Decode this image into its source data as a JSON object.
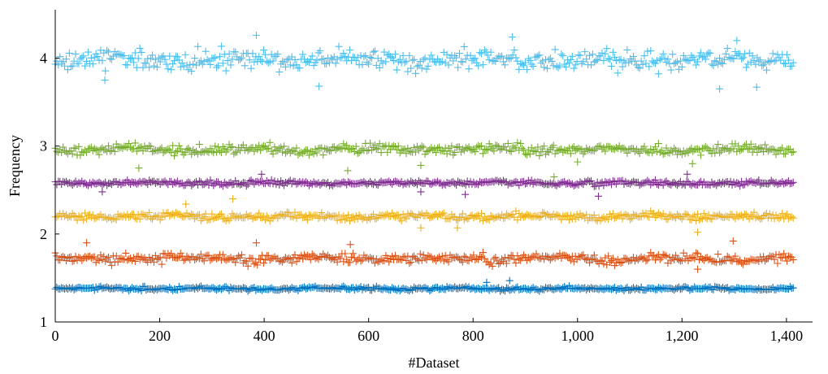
{
  "chart_data": {
    "type": "scatter",
    "title": "",
    "xlabel": "#Dataset",
    "ylabel": "Frequency",
    "xlim": [
      0,
      1450
    ],
    "ylim": [
      1,
      4.55
    ],
    "grid": false,
    "marker": "plus",
    "x_ticks": [
      0,
      200,
      400,
      600,
      800,
      1000,
      1200,
      1400
    ],
    "x_tick_labels": [
      "0",
      "200",
      "400",
      "600",
      "800",
      "1,000",
      "1,200",
      "1,400"
    ],
    "y_ticks": [
      1,
      2,
      3,
      4
    ],
    "y_tick_labels": [
      "1",
      "2",
      "3",
      "4"
    ],
    "x_range": [
      0,
      1414
    ],
    "series": [
      {
        "color": "#0072BD",
        "mean": 1.38,
        "spread": 0.015,
        "outliers": [
          [
            826,
            1.45
          ],
          [
            870,
            1.47
          ]
        ]
      },
      {
        "color": "#D95319",
        "mean": 1.72,
        "spread": 0.04,
        "outliers": [
          [
            60,
            1.9
          ],
          [
            385,
            1.9
          ],
          [
            565,
            1.88
          ],
          [
            1298,
            1.92
          ],
          [
            1230,
            1.6
          ]
        ]
      },
      {
        "color": "#EDB120",
        "mean": 2.2,
        "spread": 0.03,
        "outliers": [
          [
            340,
            2.4
          ],
          [
            250,
            2.34
          ],
          [
            700,
            2.07
          ],
          [
            1230,
            2.02
          ],
          [
            770,
            2.07
          ]
        ]
      },
      {
        "color": "#7E2F8E",
        "mean": 2.58,
        "spread": 0.02,
        "outliers": [
          [
            395,
            2.68
          ],
          [
            700,
            2.48
          ],
          [
            785,
            2.45
          ],
          [
            1040,
            2.43
          ],
          [
            1210,
            2.68
          ],
          [
            90,
            2.48
          ]
        ]
      },
      {
        "color": "#77AC30",
        "mean": 2.96,
        "spread": 0.04,
        "outliers": [
          [
            160,
            2.75
          ],
          [
            560,
            2.72
          ],
          [
            700,
            2.78
          ],
          [
            955,
            2.65
          ],
          [
            1000,
            2.82
          ],
          [
            1220,
            2.8
          ]
        ]
      },
      {
        "color": "#4DBEEE",
        "mean": 3.98,
        "spread": 0.08,
        "outliers": [
          [
            505,
            3.68
          ],
          [
            875,
            4.24
          ],
          [
            1272,
            3.65
          ],
          [
            1343,
            3.67
          ],
          [
            95,
            3.75
          ],
          [
            385,
            4.26
          ],
          [
            1305,
            4.2
          ]
        ]
      }
    ]
  }
}
